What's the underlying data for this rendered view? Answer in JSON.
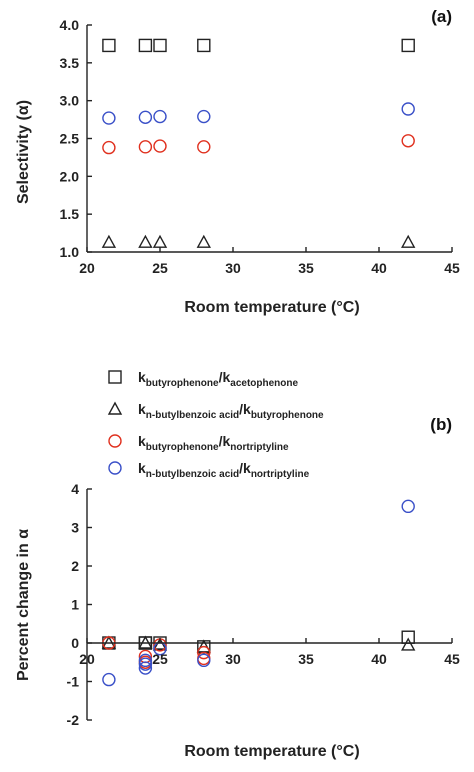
{
  "colors": {
    "black": "#222222",
    "red": "#e0301e",
    "blue": "#3a50c8"
  },
  "series_styles": [
    {
      "marker": "square",
      "color": "#222222"
    },
    {
      "marker": "triangle",
      "color": "#222222"
    },
    {
      "marker": "circle",
      "color": "#e0301e"
    },
    {
      "marker": "circle",
      "color": "#3a50c8"
    }
  ],
  "chart_data": [
    {
      "type": "scatter",
      "panel_label": "(a)",
      "xlabel": "Room temperature (°C)",
      "ylabel": "Selectivity (α)",
      "xlim": [
        20,
        45
      ],
      "ylim": [
        1.0,
        4.0
      ],
      "x_ticks": [
        "20",
        "25",
        "30",
        "35",
        "40",
        "45"
      ],
      "y_ticks": [
        "1.0",
        "1.5",
        "2.0",
        "2.5",
        "3.0",
        "3.5",
        "4.0"
      ],
      "series": [
        {
          "x": [
            21.5,
            24,
            25,
            28,
            42
          ],
          "y": [
            3.73,
            3.73,
            3.73,
            3.73,
            3.73
          ]
        },
        {
          "x": [
            21.5,
            24,
            25,
            28,
            42
          ],
          "y": [
            1.13,
            1.13,
            1.13,
            1.13,
            1.13
          ]
        },
        {
          "x": [
            21.5,
            24,
            25,
            28,
            42
          ],
          "y": [
            2.38,
            2.39,
            2.4,
            2.39,
            2.47
          ]
        },
        {
          "x": [
            21.5,
            24,
            25,
            28,
            42
          ],
          "y": [
            2.77,
            2.78,
            2.79,
            2.79,
            2.89
          ]
        }
      ]
    },
    {
      "type": "scatter",
      "panel_label": "(b)",
      "xlabel": "Room temperature (°C)",
      "ylabel": "Percent change in α",
      "xlim": [
        20,
        45
      ],
      "ylim": [
        -2,
        4
      ],
      "x_ticks": [
        "20",
        "25",
        "30",
        "35",
        "40",
        "45"
      ],
      "y_ticks": [
        "-2",
        "-1",
        "0",
        "1",
        "2",
        "3",
        "4"
      ],
      "legend": [
        {
          "main1": "k",
          "sub1": "butyrophenone",
          "slash": "/",
          "main2": "k",
          "sub2": "acetophenone"
        },
        {
          "main1": "k",
          "sub1": "n-butylbenzoic acid",
          "slash": "/",
          "main2": "k",
          "sub2": "butyrophenone"
        },
        {
          "main1": "k",
          "sub1": "butyrophenone",
          "slash": "/",
          "main2": "k",
          "sub2": "nortriptyline"
        },
        {
          "main1": "k",
          "sub1": "n-butylbenzoic acid",
          "slash": "/",
          "main2": "k",
          "sub2": "nortriptyline"
        }
      ],
      "series": [
        {
          "x": [
            21.5,
            24,
            24,
            25,
            28,
            42
          ],
          "y": [
            0,
            0,
            0,
            0,
            -0.1,
            0.15
          ]
        },
        {
          "x": [
            21.5,
            24,
            25,
            28,
            42
          ],
          "y": [
            0,
            0,
            -0.05,
            -0.1,
            -0.05
          ]
        },
        {
          "x": [
            21.5,
            24,
            24,
            25,
            28,
            28
          ],
          "y": [
            0,
            -0.35,
            -0.5,
            -0.05,
            -0.25,
            -0.4
          ]
        },
        {
          "x": [
            21.5,
            24,
            24,
            24,
            25,
            28,
            42
          ],
          "y": [
            -0.95,
            -0.45,
            -0.55,
            -0.65,
            -0.15,
            -0.45,
            3.55
          ]
        }
      ]
    }
  ]
}
